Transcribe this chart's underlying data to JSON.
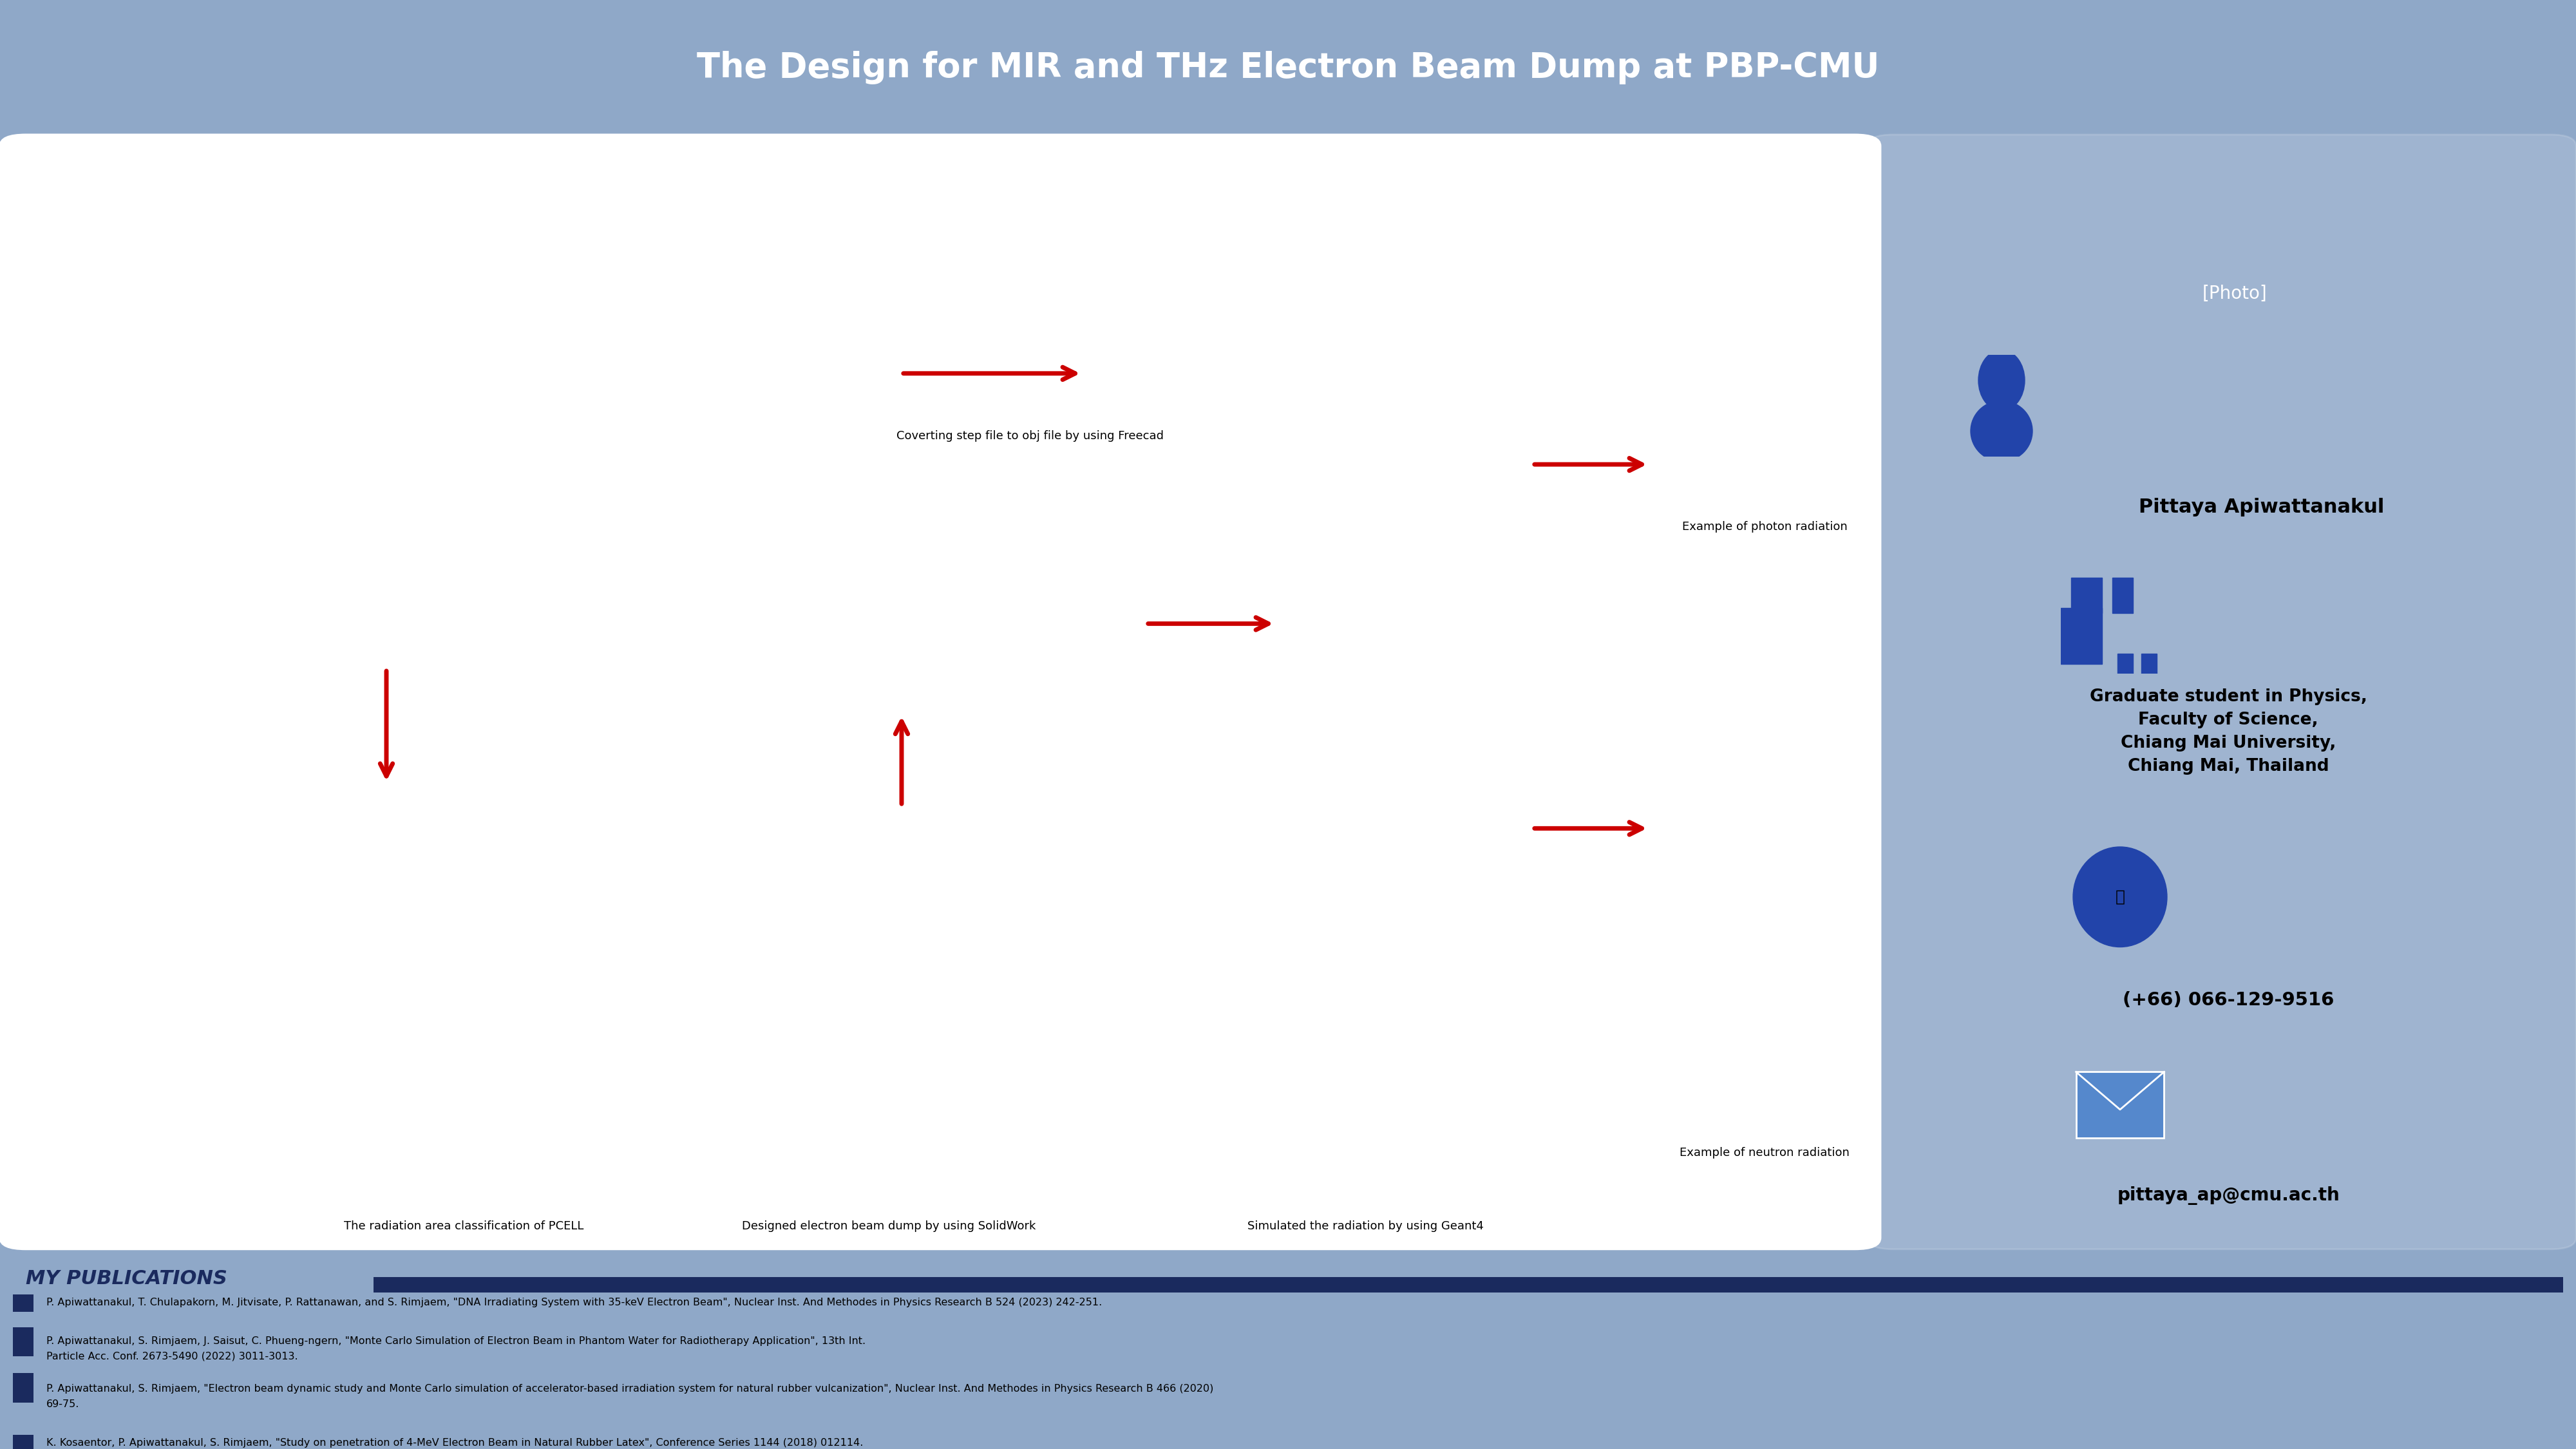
{
  "title": "The Design for MIR and THz Electron Beam Dump at PBP-CMU\nElectron Linac Laboratory",
  "title_display": "The Design for MIR and THz Electron Beam Dump at PBP-CMU",
  "bg_color": "#8fa8c8",
  "header_color": "#1a2a5e",
  "header_text_color": "#ffffff",
  "panel_bg": "#ffffff",
  "right_panel_bg": "#8fa8c8",
  "publications_bg": "#8fa8c8",
  "publications_header": "MY PUBLICATIONS",
  "pub_header_color": "#1a2a5e",
  "pub_line_color": "#1a2a5e",
  "name": "Pittaya Apiwattanakul",
  "affiliation_line1": "Graduate student in Physics,",
  "affiliation_line2": "Faculty of Science,",
  "affiliation_line3": "Chiang Mai University,",
  "affiliation_line4": "Chiang Mai, Thailand",
  "phone": "(+66) 066-129-9516",
  "email": "pittaya_ap@cmu.ac.th",
  "caption1": "The radiation area classification of PCELL",
  "caption2": "Coverting step file to obj file by using Freecad",
  "caption3": "Simulated the radiation by using Geant4",
  "caption4": "Example of photon radiation",
  "caption5": "Designed electron beam dump by using SolidWork",
  "caption6": "Example of neutron radiation",
  "pub1": "P. Apiwattanakul, T. Chulapakorn, M. Jitvisate, P. Rattanawan, and S. Rimjaem, \"DNA Irradiating System with 35-keV Electron Beam\", Nuclear Inst. And Methodes in Physics Research B 524 (2023) 242-251.",
  "pub2_line1": "P. Apiwattanakul, S. Rimjaem, J. Saisut, C. Phueng-ngern, \"Monte Carlo Simulation of Electron Beam in Phantom Water for Radiotherapy Application\", 13th Int.",
  "pub2_line2": "Particle Acc. Conf. 2673-5490 (2022) 3011-3013.",
  "pub3_line1": "P. Apiwattanakul, S. Rimjaem, \"Electron beam dynamic study and Monte Carlo simulation of accelerator-based irradiation system for natural rubber vulcanization\", Nuclear Inst. And Methodes in Physics Research B 466 (2020)",
  "pub3_line2": "69-75.",
  "pub4": "K. Kosaentor, P. Apiwattanakul, S. Rimjaem, \"Study on penetration of 4-MeV Electron Beam in Natural Rubber Latex\", Conference Series 1144 (2018) 012114.",
  "arrow_color": "#cc0000",
  "person_icon_color": "#2244aa",
  "building_icon_color": "#2244aa",
  "phone_icon_color": "#2244aa",
  "email_icon_color": "#5588cc"
}
